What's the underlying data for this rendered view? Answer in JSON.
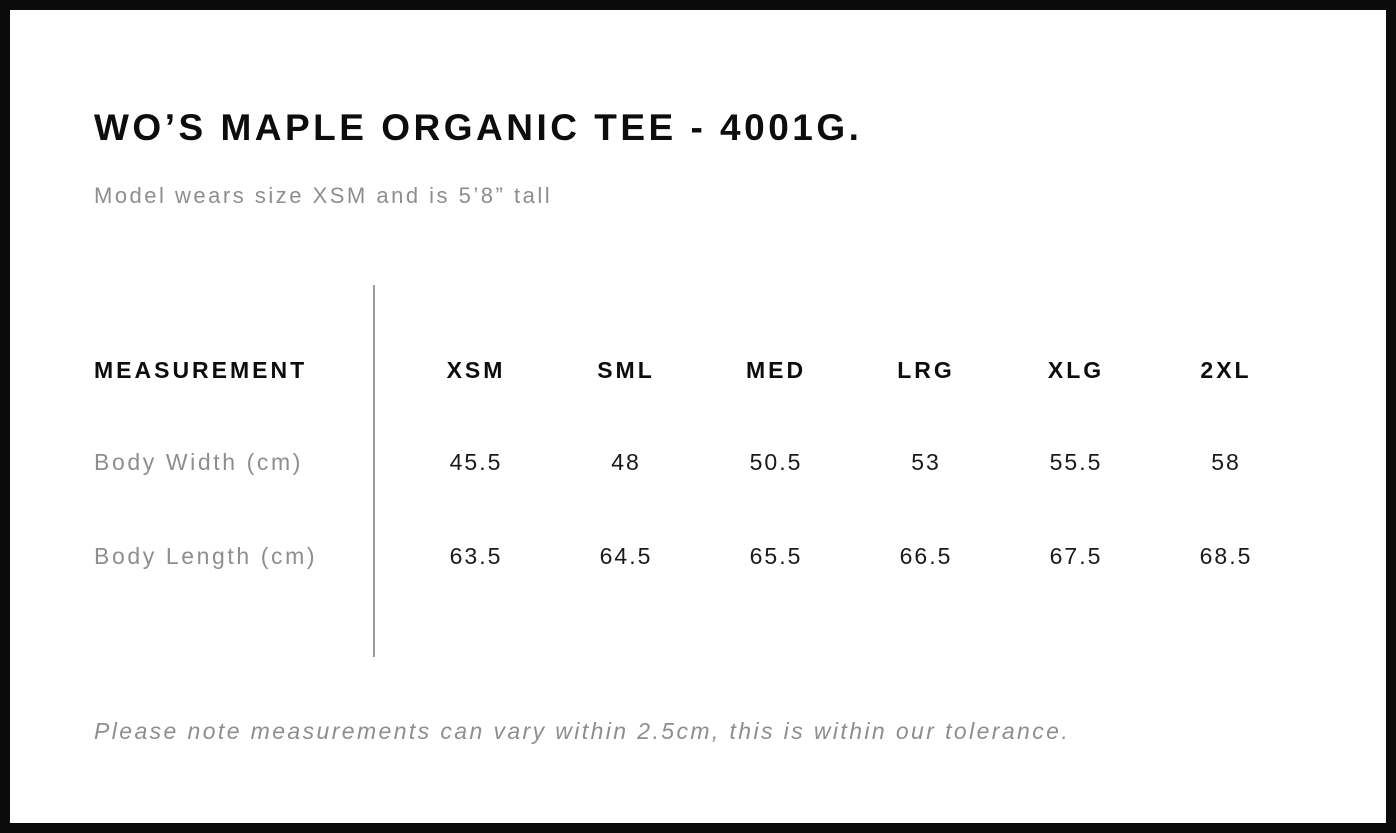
{
  "chart_data": {
    "type": "table",
    "title": "WO’S MAPLE ORGANIC TEE - 4001G.",
    "subtitle": "Model wears size XSM and is 5’8” tall",
    "measurement_header": "MEASUREMENT",
    "sizes": [
      "XSM",
      "SML",
      "MED",
      "LRG",
      "XLG",
      "2XL"
    ],
    "rows": [
      {
        "label": "Body Width (cm)",
        "values": [
          45.5,
          48,
          50.5,
          53,
          55.5,
          58
        ]
      },
      {
        "label": "Body Length (cm)",
        "values": [
          63.5,
          64.5,
          65.5,
          66.5,
          67.5,
          68.5
        ]
      }
    ],
    "note": "Please note measurements can vary within 2.5cm, this is within our tolerance.",
    "layout_hints": {
      "divider": "vertical line between measurement labels and size columns",
      "grid": "off"
    }
  },
  "colors": {
    "text_primary": "#0d0d0d",
    "text_muted": "#8e8e8e",
    "divider": "#9b9b9b",
    "border": "#0b0b0b",
    "background": "#ffffff"
  }
}
